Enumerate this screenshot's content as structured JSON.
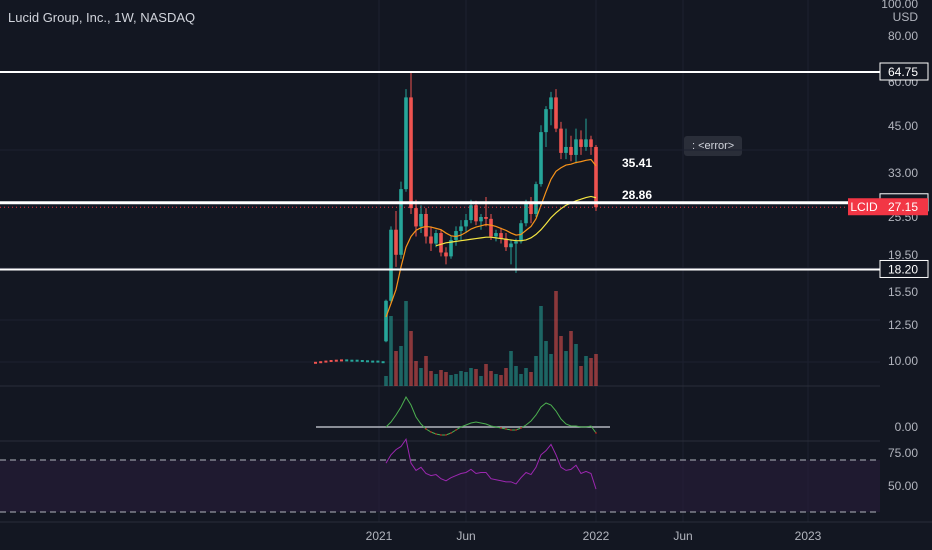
{
  "header": {
    "title": "Lucid Group, Inc., 1W, NASDAQ"
  },
  "tooltip": {
    "text": ": <error>"
  },
  "chart_data": {
    "type": "candlestick",
    "ticker": "LCID",
    "currency": "USD",
    "price_axis_labels": [
      "100.00",
      "80.00",
      "60.00",
      "45.00",
      "33.00",
      "25.50",
      "19.50",
      "15.50",
      "12.50",
      "10.00"
    ],
    "x_axis_labels": [
      "2021",
      "Jun",
      "2022",
      "Jun",
      "2023"
    ],
    "horizontal_levels": [
      {
        "label": "64.75",
        "value": 64.75
      },
      {
        "label": "27.94",
        "value": 27.94
      },
      {
        "label": "18.20",
        "value": 18.2
      }
    ],
    "last_price": {
      "label": "27.15",
      "value": 27.15,
      "color": "#f23645"
    },
    "ma_labels": [
      "35.41",
      "28.86"
    ],
    "oscillator_labels": [
      "0.00"
    ],
    "rsi_labels": [
      "75.00",
      "50.00"
    ],
    "colors": {
      "up": "#26a69a",
      "down": "#ef5350",
      "background": "#131722",
      "level_line": "#ffffff",
      "ma_fast": "#f7931a",
      "ma_slow": "#f5e642",
      "oscillator": "#4caf50",
      "rsi": "#9c27b0",
      "rsi_band": "#2a1e3d"
    },
    "pre_ipo": [
      10.3,
      10.2,
      10.1,
      10.0,
      9.95,
      9.9,
      9.9,
      9.95,
      9.95,
      10.0,
      10.05,
      10.1,
      10.1,
      10.2
    ],
    "candles": [
      [
        10.3,
        15.0,
        10.2,
        14.8
      ],
      [
        14.8,
        24.0,
        14.5,
        23.5
      ],
      [
        23.5,
        26.5,
        18.5,
        20.0
      ],
      [
        20.0,
        32.0,
        19.5,
        30.5
      ],
      [
        30.5,
        58.0,
        30.0,
        55.0
      ],
      [
        55.0,
        64.75,
        26.0,
        27.0
      ],
      [
        27.0,
        28.5,
        22.5,
        24.0
      ],
      [
        24.0,
        27.5,
        23.0,
        26.0
      ],
      [
        26.0,
        27.0,
        21.5,
        22.5
      ],
      [
        22.5,
        24.0,
        20.5,
        21.5
      ],
      [
        21.5,
        23.5,
        21.0,
        23.0
      ],
      [
        23.0,
        23.5,
        19.8,
        20.3
      ],
      [
        20.3,
        21.0,
        18.8,
        19.8
      ],
      [
        19.8,
        22.5,
        19.5,
        22.0
      ],
      [
        22.0,
        24.0,
        21.2,
        23.3
      ],
      [
        23.3,
        25.0,
        22.0,
        24.0
      ],
      [
        24.0,
        26.0,
        23.0,
        25.0
      ],
      [
        25.0,
        28.5,
        24.5,
        27.5
      ],
      [
        27.5,
        28.3,
        24.2,
        24.8
      ],
      [
        24.8,
        26.0,
        23.5,
        25.5
      ],
      [
        25.5,
        29.0,
        24.0,
        25.2
      ],
      [
        25.2,
        26.0,
        22.0,
        22.5
      ],
      [
        22.5,
        23.5,
        21.8,
        23.0
      ],
      [
        23.0,
        23.8,
        21.5,
        22.2
      ],
      [
        22.2,
        23.0,
        20.5,
        21.0
      ],
      [
        21.0,
        22.0,
        18.8,
        21.5
      ],
      [
        21.5,
        22.2,
        17.8,
        21.8
      ],
      [
        21.8,
        25.0,
        21.5,
        24.5
      ],
      [
        24.5,
        28.5,
        24.0,
        28.0
      ],
      [
        28.0,
        29.0,
        24.5,
        26.0
      ],
      [
        26.0,
        32.0,
        25.5,
        31.5
      ],
      [
        31.5,
        46.0,
        31.0,
        44.0
      ],
      [
        44.0,
        52.0,
        40.0,
        51.0
      ],
      [
        51.0,
        57.0,
        46.0,
        55.0
      ],
      [
        55.0,
        58.0,
        44.0,
        45.0
      ],
      [
        45.0,
        47.0,
        37.0,
        38.5
      ],
      [
        38.5,
        45.0,
        37.0,
        40.0
      ],
      [
        40.0,
        43.0,
        36.5,
        38.0
      ],
      [
        38.0,
        45.0,
        36.0,
        42.0
      ],
      [
        42.0,
        44.5,
        38.0,
        40.0
      ],
      [
        40.0,
        48.0,
        39.0,
        42.0
      ],
      [
        42.0,
        43.0,
        38.0,
        40.0
      ],
      [
        40.0,
        40.5,
        26.5,
        27.15
      ]
    ],
    "volume": [
      0.1,
      0.7,
      0.35,
      0.4,
      0.85,
      0.55,
      0.25,
      0.18,
      0.3,
      0.15,
      0.12,
      0.16,
      0.14,
      0.11,
      0.12,
      0.15,
      0.14,
      0.18,
      0.17,
      0.1,
      0.22,
      0.15,
      0.12,
      0.11,
      0.18,
      0.35,
      0.2,
      0.12,
      0.18,
      0.14,
      0.3,
      0.8,
      0.45,
      0.32,
      0.95,
      0.5,
      0.35,
      0.55,
      0.42,
      0.2,
      0.3,
      0.28,
      0.32
    ],
    "ma_fast": [
      13.0,
      14.5,
      16.0,
      18.5,
      21.0,
      22.5,
      23.4,
      23.8,
      24.0,
      23.9,
      23.7,
      23.5,
      23.0,
      22.6,
      22.5,
      22.7,
      23.1,
      23.6,
      23.9,
      24.1,
      24.3,
      24.2,
      24.0,
      23.7,
      23.4,
      23.0,
      22.7,
      22.8,
      23.4,
      24.0,
      25.2,
      27.5,
      30.0,
      32.5,
      34.2,
      35.0,
      35.6,
      35.8,
      36.2,
      36.4,
      36.7,
      36.9,
      35.41
    ],
    "ma_slow": [
      null,
      null,
      null,
      null,
      null,
      null,
      null,
      null,
      null,
      null,
      21.2,
      21.4,
      21.6,
      21.7,
      21.8,
      21.9,
      22.0,
      22.1,
      22.2,
      22.3,
      22.4,
      22.4,
      22.3,
      22.2,
      22.1,
      22.0,
      21.9,
      21.9,
      22.0,
      22.3,
      22.8,
      23.5,
      24.4,
      25.4,
      26.2,
      26.9,
      27.5,
      27.9,
      28.3,
      28.6,
      28.9,
      29.1,
      28.86
    ],
    "oscillator": [
      0,
      0.5,
      1.2,
      2.0,
      3.0,
      2.2,
      1.0,
      0.3,
      -0.2,
      -0.5,
      -0.7,
      -0.8,
      -0.8,
      -0.6,
      -0.3,
      0,
      0.2,
      0.4,
      0.5,
      0.4,
      0.3,
      0.1,
      0,
      -0.1,
      -0.2,
      -0.3,
      -0.3,
      -0.1,
      0.2,
      0.6,
      1.2,
      2.0,
      2.4,
      2.2,
      1.6,
      0.8,
      0.3,
      0.1,
      0.1,
      0,
      0,
      0.1,
      -0.6
    ],
    "rsi": [
      72,
      80,
      85,
      88,
      95,
      72,
      65,
      68,
      62,
      60,
      61,
      57,
      55,
      58,
      60,
      62,
      63,
      66,
      62,
      63,
      63,
      57,
      56,
      55,
      54,
      54,
      52,
      58,
      63,
      61,
      68,
      80,
      84,
      90,
      80,
      68,
      65,
      66,
      70,
      62,
      64,
      62,
      47
    ]
  }
}
